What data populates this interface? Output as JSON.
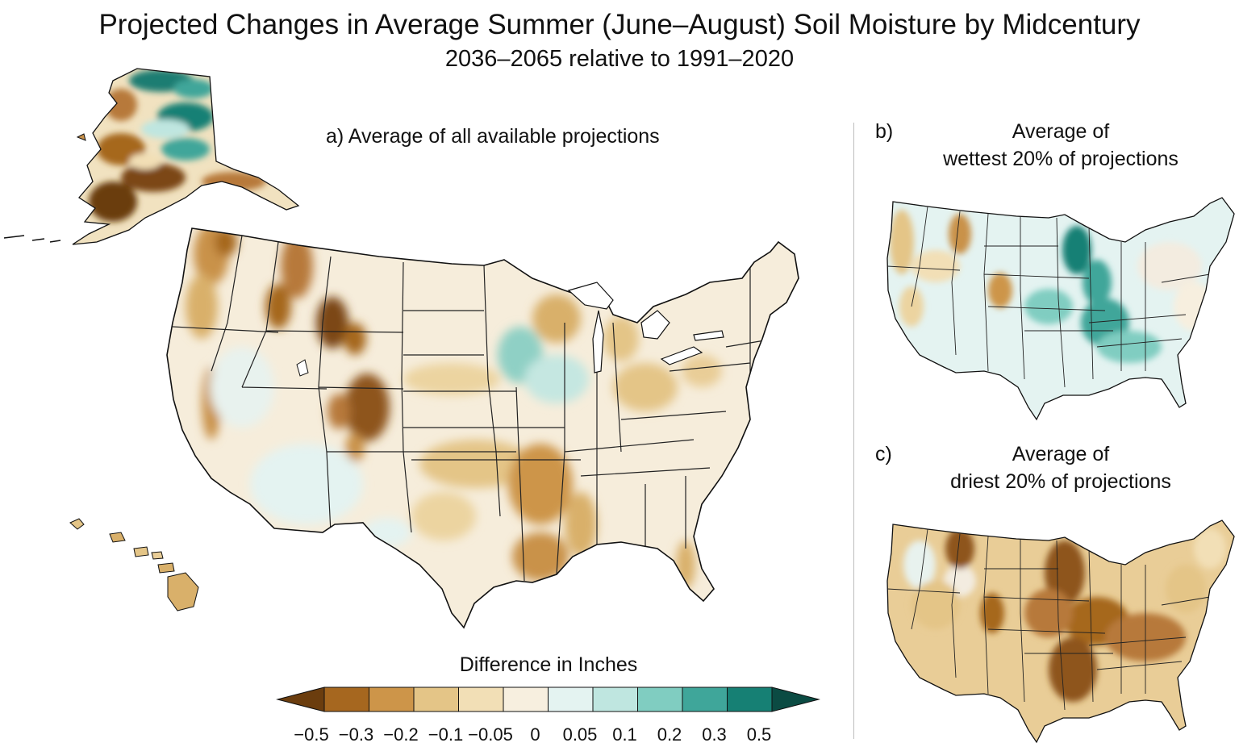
{
  "title": "Projected Changes in Average Summer (June–August) Soil Moisture by Midcentury",
  "subtitle": "2036–2065 relative to 1991–2020",
  "panels": {
    "a": {
      "label": "a) Average of all available projections"
    },
    "b": {
      "letter": "b)",
      "line1": "Average of",
      "line2": "wettest 20% of projections"
    },
    "c": {
      "letter": "c)",
      "line1": "Average of",
      "line2": "driest 20% of projections"
    }
  },
  "colorbar": {
    "title": "Difference in Inches",
    "ticks": [
      "−0.5",
      "−0.3",
      "−0.2",
      "−0.1",
      "−0.05",
      "0",
      "0.05",
      "0.1",
      "0.2",
      "0.3",
      "0.5"
    ],
    "colors": [
      "#6b3d0e",
      "#a6671f",
      "#cd9549",
      "#e4c587",
      "#f2dfb6",
      "#f7efdf",
      "#e4f3f1",
      "#bfe6e0",
      "#80cdc1",
      "#3fa69a",
      "#168074",
      "#0b4b43"
    ]
  }
}
